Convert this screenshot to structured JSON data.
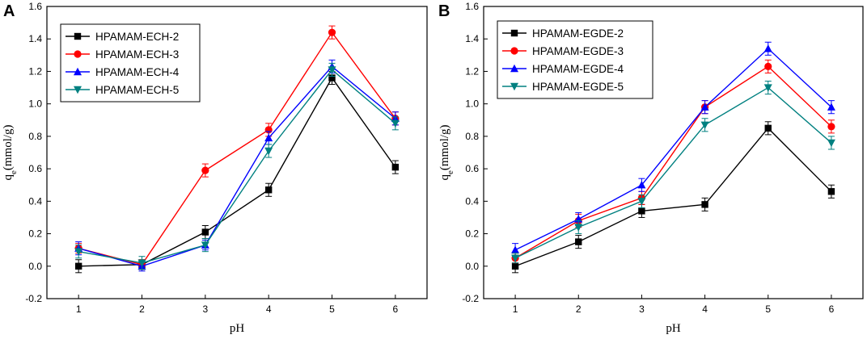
{
  "chart_data": [
    {
      "panel_label": "A",
      "type": "line",
      "xlabel": "pH",
      "ylabel_main": "q",
      "ylabel_sub": "e",
      "ylabel_unit": "(mmol/g)",
      "xticks": [
        "1",
        "2",
        "3",
        "4",
        "5",
        "6"
      ],
      "yticks": [
        "-0.2",
        "0.0",
        "0.2",
        "0.4",
        "0.6",
        "0.8",
        "1.0",
        "1.2",
        "1.4",
        "1.6"
      ],
      "xlim": [
        0.5,
        6.5
      ],
      "ylim": [
        -0.2,
        1.6
      ],
      "legend_position": "top-left",
      "x": [
        1,
        2,
        3,
        4,
        5,
        6
      ],
      "series": [
        {
          "name": "HPAMAM-ECH-2",
          "color": "#000000",
          "marker": "square",
          "values": [
            0.0,
            0.01,
            0.21,
            0.47,
            1.16,
            0.61
          ],
          "errors": [
            0.04,
            0.03,
            0.04,
            0.04,
            0.04,
            0.04
          ]
        },
        {
          "name": "HPAMAM-ECH-3",
          "color": "#ff0000",
          "marker": "circle",
          "values": [
            0.11,
            0.01,
            0.59,
            0.84,
            1.44,
            0.91
          ],
          "errors": [
            0.03,
            0.03,
            0.04,
            0.04,
            0.04,
            0.04
          ]
        },
        {
          "name": "HPAMAM-ECH-4",
          "color": "#0000ff",
          "marker": "triangle-up",
          "values": [
            0.11,
            0.0,
            0.13,
            0.79,
            1.23,
            0.91
          ],
          "errors": [
            0.04,
            0.03,
            0.03,
            0.04,
            0.04,
            0.04
          ]
        },
        {
          "name": "HPAMAM-ECH-5",
          "color": "#008080",
          "marker": "triangle-down",
          "values": [
            0.09,
            0.02,
            0.13,
            0.71,
            1.21,
            0.88
          ],
          "errors": [
            0.04,
            0.04,
            0.04,
            0.04,
            0.04,
            0.04
          ]
        }
      ]
    },
    {
      "panel_label": "B",
      "type": "line",
      "xlabel": "pH",
      "ylabel_main": "q",
      "ylabel_sub": "e",
      "ylabel_unit": "(mmol/g)",
      "xticks": [
        "1",
        "2",
        "3",
        "4",
        "5",
        "6"
      ],
      "yticks": [
        "-0.2",
        "0.0",
        "0.2",
        "0.4",
        "0.6",
        "0.8",
        "1.0",
        "1.2",
        "1.4",
        "1.6"
      ],
      "xlim": [
        0.5,
        6.5
      ],
      "ylim": [
        -0.2,
        1.6
      ],
      "legend_position": "top-left",
      "x": [
        1,
        2,
        3,
        4,
        5,
        6
      ],
      "series": [
        {
          "name": "HPAMAM-EGDE-2",
          "color": "#000000",
          "marker": "square",
          "values": [
            0.0,
            0.15,
            0.34,
            0.38,
            0.85,
            0.46
          ],
          "errors": [
            0.04,
            0.04,
            0.04,
            0.04,
            0.04,
            0.04
          ]
        },
        {
          "name": "HPAMAM-EGDE-3",
          "color": "#ff0000",
          "marker": "circle",
          "values": [
            0.05,
            0.28,
            0.42,
            0.98,
            1.23,
            0.86
          ],
          "errors": [
            0.03,
            0.04,
            0.04,
            0.04,
            0.04,
            0.04
          ]
        },
        {
          "name": "HPAMAM-EGDE-4",
          "color": "#0000ff",
          "marker": "triangle-up",
          "values": [
            0.1,
            0.29,
            0.5,
            0.98,
            1.34,
            0.98
          ],
          "errors": [
            0.04,
            0.04,
            0.04,
            0.04,
            0.04,
            0.04
          ]
        },
        {
          "name": "HPAMAM-EGDE-5",
          "color": "#008080",
          "marker": "triangle-down",
          "values": [
            0.05,
            0.24,
            0.4,
            0.87,
            1.1,
            0.76
          ],
          "errors": [
            0.03,
            0.04,
            0.04,
            0.04,
            0.04,
            0.04
          ]
        }
      ]
    }
  ]
}
